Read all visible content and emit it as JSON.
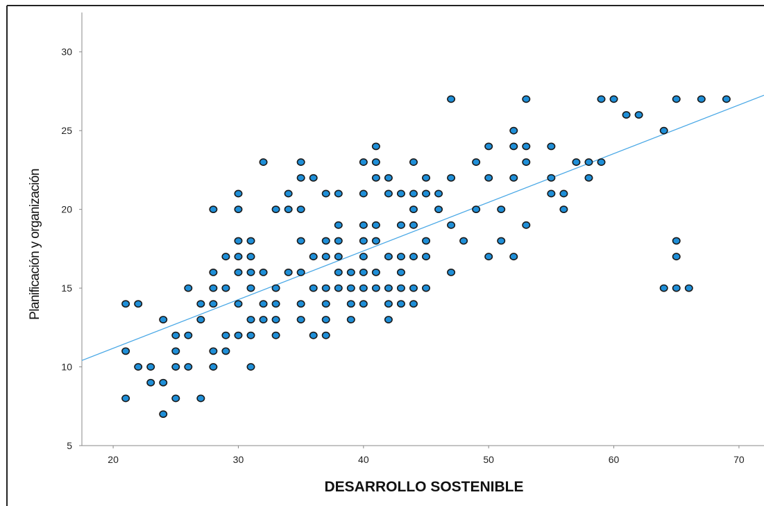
{
  "chart_data": {
    "type": "scatter",
    "title": "",
    "xlabel": "DESARROLLO SOSTENIBLE",
    "ylabel": "Planificación y organización",
    "xlim": [
      17.5,
      72
    ],
    "ylim": [
      5,
      32.5
    ],
    "xticks": [
      "20",
      "30",
      "40",
      "50",
      "60",
      "70"
    ],
    "yticks": [
      "5",
      "10",
      "15",
      "20",
      "25",
      "30"
    ],
    "grid": false,
    "legend": "none",
    "marker_color": "#1f8fd8",
    "marker_edge_color": "#1a1a1a",
    "fit_line_color": "#4aa8e6",
    "fit_line": {
      "slope": 0.309,
      "intercept": 5.0
    },
    "points": [
      [
        21,
        14
      ],
      [
        22,
        14
      ],
      [
        21,
        11
      ],
      [
        21,
        8
      ],
      [
        22,
        10
      ],
      [
        23,
        10
      ],
      [
        23,
        9
      ],
      [
        24,
        9
      ],
      [
        24,
        7
      ],
      [
        24,
        13
      ],
      [
        25,
        12
      ],
      [
        25,
        11
      ],
      [
        25,
        10
      ],
      [
        25,
        8
      ],
      [
        26,
        15
      ],
      [
        26,
        12
      ],
      [
        26,
        10
      ],
      [
        27,
        14
      ],
      [
        27,
        13
      ],
      [
        27,
        8
      ],
      [
        28,
        20
      ],
      [
        28,
        16
      ],
      [
        28,
        15
      ],
      [
        28,
        14
      ],
      [
        28,
        11
      ],
      [
        28,
        10
      ],
      [
        29,
        17
      ],
      [
        29,
        15
      ],
      [
        29,
        12
      ],
      [
        29,
        11
      ],
      [
        30,
        21
      ],
      [
        30,
        20
      ],
      [
        30,
        18
      ],
      [
        30,
        17
      ],
      [
        30,
        16
      ],
      [
        30,
        14
      ],
      [
        30,
        12
      ],
      [
        31,
        18
      ],
      [
        31,
        17
      ],
      [
        31,
        16
      ],
      [
        31,
        15
      ],
      [
        31,
        13
      ],
      [
        31,
        12
      ],
      [
        31,
        10
      ],
      [
        32,
        23
      ],
      [
        32,
        16
      ],
      [
        32,
        14
      ],
      [
        32,
        13
      ],
      [
        33,
        20
      ],
      [
        33,
        15
      ],
      [
        33,
        14
      ],
      [
        33,
        13
      ],
      [
        33,
        12
      ],
      [
        34,
        21
      ],
      [
        34,
        20
      ],
      [
        34,
        16
      ],
      [
        35,
        23
      ],
      [
        35,
        22
      ],
      [
        35,
        20
      ],
      [
        35,
        18
      ],
      [
        35,
        16
      ],
      [
        35,
        14
      ],
      [
        35,
        13
      ],
      [
        36,
        22
      ],
      [
        36,
        17
      ],
      [
        36,
        15
      ],
      [
        36,
        12
      ],
      [
        37,
        21
      ],
      [
        37,
        18
      ],
      [
        37,
        17
      ],
      [
        37,
        15
      ],
      [
        37,
        14
      ],
      [
        37,
        13
      ],
      [
        37,
        12
      ],
      [
        38,
        21
      ],
      [
        38,
        19
      ],
      [
        38,
        18
      ],
      [
        38,
        17
      ],
      [
        38,
        16
      ],
      [
        38,
        15
      ],
      [
        39,
        16
      ],
      [
        39,
        15
      ],
      [
        39,
        14
      ],
      [
        39,
        13
      ],
      [
        40,
        23
      ],
      [
        40,
        21
      ],
      [
        40,
        19
      ],
      [
        40,
        18
      ],
      [
        40,
        17
      ],
      [
        40,
        16
      ],
      [
        40,
        15
      ],
      [
        40,
        14
      ],
      [
        41,
        24
      ],
      [
        41,
        23
      ],
      [
        41,
        22
      ],
      [
        41,
        19
      ],
      [
        41,
        18
      ],
      [
        41,
        16
      ],
      [
        41,
        15
      ],
      [
        42,
        22
      ],
      [
        42,
        21
      ],
      [
        42,
        17
      ],
      [
        42,
        15
      ],
      [
        42,
        14
      ],
      [
        42,
        13
      ],
      [
        43,
        21
      ],
      [
        43,
        19
      ],
      [
        43,
        17
      ],
      [
        43,
        16
      ],
      [
        43,
        15
      ],
      [
        43,
        14
      ],
      [
        44,
        23
      ],
      [
        44,
        21
      ],
      [
        44,
        20
      ],
      [
        44,
        19
      ],
      [
        44,
        17
      ],
      [
        44,
        15
      ],
      [
        44,
        14
      ],
      [
        45,
        22
      ],
      [
        45,
        21
      ],
      [
        45,
        18
      ],
      [
        45,
        17
      ],
      [
        45,
        15
      ],
      [
        46,
        21
      ],
      [
        46,
        20
      ],
      [
        47,
        27
      ],
      [
        47,
        22
      ],
      [
        47,
        19
      ],
      [
        47,
        16
      ],
      [
        48,
        18
      ],
      [
        49,
        23
      ],
      [
        49,
        20
      ],
      [
        50,
        24
      ],
      [
        50,
        22
      ],
      [
        50,
        17
      ],
      [
        51,
        20
      ],
      [
        51,
        18
      ],
      [
        52,
        25
      ],
      [
        52,
        24
      ],
      [
        52,
        22
      ],
      [
        52,
        17
      ],
      [
        53,
        27
      ],
      [
        53,
        24
      ],
      [
        53,
        23
      ],
      [
        53,
        19
      ],
      [
        55,
        24
      ],
      [
        55,
        22
      ],
      [
        55,
        21
      ],
      [
        56,
        21
      ],
      [
        56,
        20
      ],
      [
        57,
        23
      ],
      [
        58,
        23
      ],
      [
        58,
        22
      ],
      [
        59,
        27
      ],
      [
        59,
        23
      ],
      [
        60,
        27
      ],
      [
        61,
        26
      ],
      [
        62,
        26
      ],
      [
        64,
        25
      ],
      [
        64,
        15
      ],
      [
        65,
        27
      ],
      [
        65,
        18
      ],
      [
        65,
        17
      ],
      [
        65,
        15
      ],
      [
        66,
        15
      ],
      [
        67,
        27
      ],
      [
        69,
        27
      ]
    ]
  }
}
